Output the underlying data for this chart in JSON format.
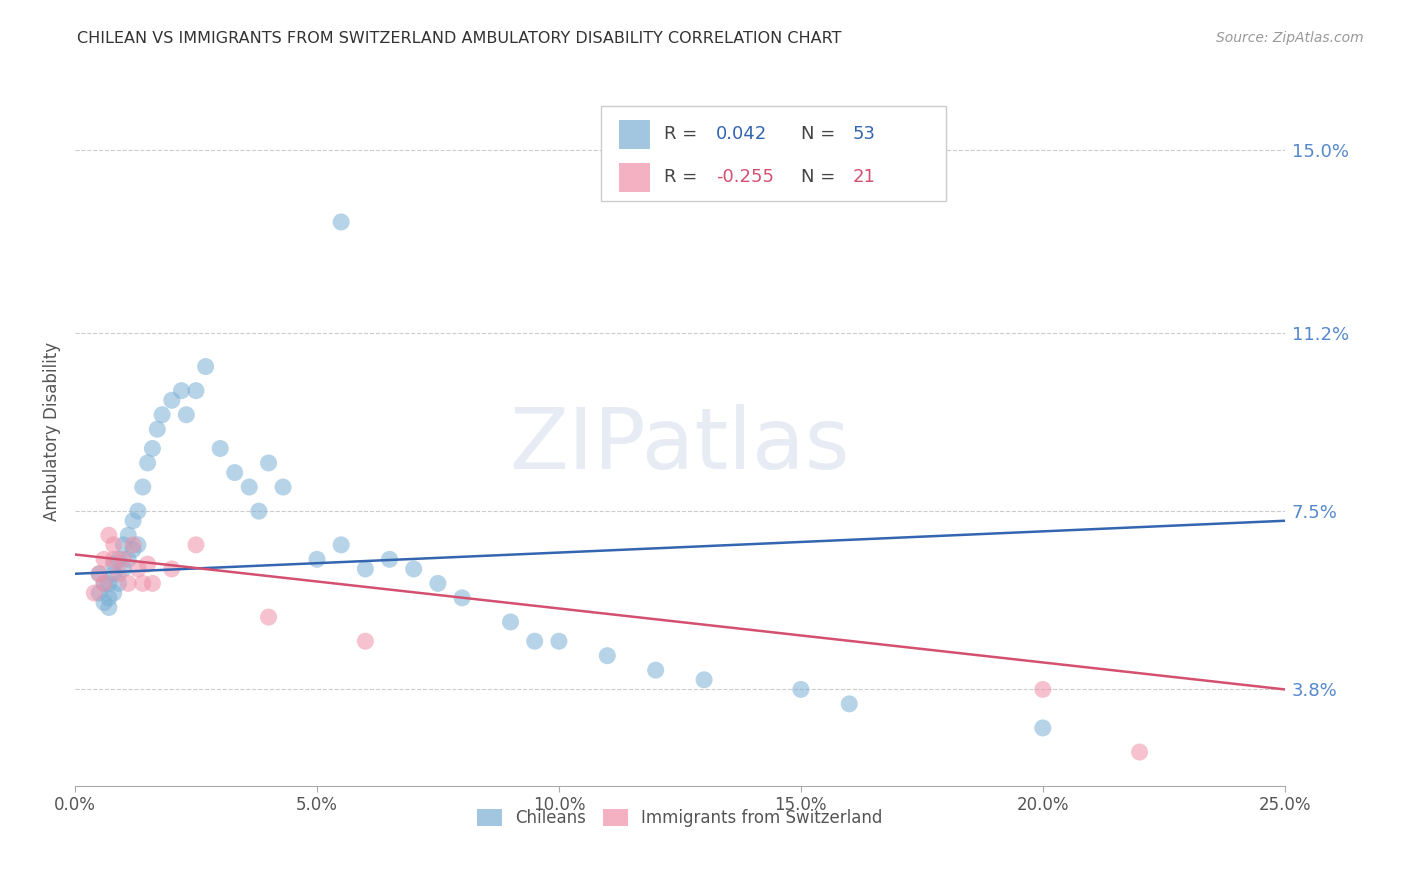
{
  "title": "CHILEAN VS IMMIGRANTS FROM SWITZERLAND AMBULATORY DISABILITY CORRELATION CHART",
  "source": "Source: ZipAtlas.com",
  "ylabel": "Ambulatory Disability",
  "xlabel_ticks": [
    "0.0%",
    "",
    "",
    "",
    "",
    "5.0%",
    "",
    "",
    "",
    "",
    "10.0%",
    "",
    "",
    "",
    "",
    "15.0%",
    "",
    "",
    "",
    "",
    "20.0%",
    "",
    "",
    "",
    "",
    "25.0%"
  ],
  "xlabel_vals": [
    0.0,
    0.01,
    0.02,
    0.03,
    0.04,
    0.05,
    0.06,
    0.07,
    0.08,
    0.09,
    0.1,
    0.11,
    0.12,
    0.13,
    0.14,
    0.15,
    0.16,
    0.17,
    0.18,
    0.19,
    0.2,
    0.21,
    0.22,
    0.23,
    0.24,
    0.25
  ],
  "ytick_labels": [
    "3.8%",
    "7.5%",
    "11.2%",
    "15.0%"
  ],
  "ytick_vals": [
    0.038,
    0.075,
    0.112,
    0.15
  ],
  "xlim": [
    0.0,
    0.25
  ],
  "ylim": [
    0.018,
    0.165
  ],
  "watermark": "ZIPatlas",
  "legend_chileans_R": "0.042",
  "legend_chileans_N": "53",
  "legend_swiss_R": "-0.255",
  "legend_swiss_N": "21",
  "blue_line_x": [
    0.0,
    0.25
  ],
  "blue_line_y": [
    0.062,
    0.073
  ],
  "pink_line_x": [
    0.0,
    0.25
  ],
  "pink_line_y": [
    0.066,
    0.038
  ],
  "chileans_x": [
    0.005,
    0.005,
    0.006,
    0.006,
    0.007,
    0.007,
    0.007,
    0.008,
    0.008,
    0.008,
    0.009,
    0.009,
    0.01,
    0.01,
    0.011,
    0.011,
    0.012,
    0.012,
    0.013,
    0.013,
    0.014,
    0.015,
    0.016,
    0.017,
    0.018,
    0.02,
    0.022,
    0.023,
    0.025,
    0.027,
    0.03,
    0.033,
    0.036,
    0.038,
    0.04,
    0.043,
    0.05,
    0.055,
    0.06,
    0.065,
    0.07,
    0.075,
    0.08,
    0.09,
    0.095,
    0.1,
    0.11,
    0.12,
    0.13,
    0.15,
    0.16,
    0.2,
    0.055
  ],
  "chileans_y": [
    0.062,
    0.058,
    0.06,
    0.056,
    0.057,
    0.055,
    0.06,
    0.062,
    0.058,
    0.064,
    0.065,
    0.06,
    0.068,
    0.063,
    0.07,
    0.065,
    0.073,
    0.067,
    0.075,
    0.068,
    0.08,
    0.085,
    0.088,
    0.092,
    0.095,
    0.098,
    0.1,
    0.095,
    0.1,
    0.105,
    0.088,
    0.083,
    0.08,
    0.075,
    0.085,
    0.08,
    0.065,
    0.068,
    0.063,
    0.065,
    0.063,
    0.06,
    0.057,
    0.052,
    0.048,
    0.048,
    0.045,
    0.042,
    0.04,
    0.038,
    0.035,
    0.03,
    0.135
  ],
  "swiss_x": [
    0.004,
    0.005,
    0.006,
    0.006,
    0.007,
    0.008,
    0.008,
    0.009,
    0.01,
    0.011,
    0.012,
    0.013,
    0.014,
    0.015,
    0.016,
    0.02,
    0.025,
    0.04,
    0.06,
    0.2,
    0.22
  ],
  "swiss_y": [
    0.058,
    0.062,
    0.06,
    0.065,
    0.07,
    0.065,
    0.068,
    0.062,
    0.065,
    0.06,
    0.068,
    0.063,
    0.06,
    0.064,
    0.06,
    0.063,
    0.068,
    0.053,
    0.048,
    0.038,
    0.025
  ],
  "blue_scatter_color": "#7bafd4",
  "pink_scatter_color": "#f090a8",
  "blue_line_color": "#3365b0",
  "pink_line_color": "#d45070",
  "grid_color": "#cccccc",
  "title_color": "#333333",
  "ytick_color": "#5588cc",
  "source_color": "#999999",
  "background_color": "#ffffff",
  "legend_box_color": "#cccccc",
  "watermark_color": "#c8d4e8"
}
